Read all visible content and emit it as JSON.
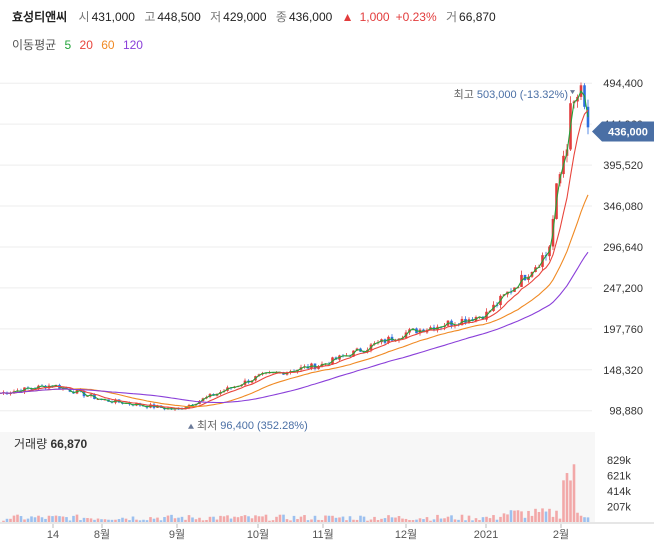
{
  "header": {
    "name": "효성티앤씨",
    "open_label": "시",
    "open": "431,000",
    "high_label": "고",
    "high": "448,500",
    "low_label": "저",
    "low": "429,000",
    "close_label": "종",
    "close": "436,000",
    "change_arrow": "▲",
    "change": "1,000",
    "change_pct": "+0.23%",
    "volume_label": "거",
    "volume": "66,870"
  },
  "moving_average": {
    "label": "이동평균",
    "periods": [
      {
        "value": "5",
        "color": "#22a33a"
      },
      {
        "value": "20",
        "color": "#e8453c"
      },
      {
        "value": "60",
        "color": "#f08a24"
      },
      {
        "value": "120",
        "color": "#8a3fd9"
      }
    ]
  },
  "colors": {
    "up": "#e23c3c",
    "down": "#2f6fe0",
    "grid": "#eeeeee",
    "price_tag": "#4a6fa5",
    "volume_up": "#f2a8a8",
    "volume_down": "#9cc0ef"
  },
  "chart_data": {
    "type": "candlestick",
    "y_axis": {
      "ticks": [
        98880,
        148320,
        197760,
        247200,
        296640,
        346080,
        395520,
        444960,
        494400
      ],
      "tick_labels": [
        "98,880",
        "148,320",
        "197,760",
        "247,200",
        "296,640",
        "346,080",
        "395,520",
        "444,960",
        "494,400"
      ],
      "range": [
        78000,
        520000
      ]
    },
    "x_axis": {
      "labels": [
        "14",
        "8월",
        "9월",
        "10월",
        "11월",
        "12월",
        "2021",
        "2월"
      ]
    },
    "current_price": {
      "value": 436000,
      "label": "436,000"
    },
    "high_marker": {
      "prefix": "최고",
      "value": 503000,
      "text": "503,000 (-13.32%)"
    },
    "low_marker": {
      "prefix": "최저",
      "value": 96400,
      "text": "96,400 (352.28%)"
    },
    "series": [
      {
        "name": "5",
        "color": "#22a33a"
      },
      {
        "name": "20",
        "color": "#e8453c"
      },
      {
        "name": "60",
        "color": "#f08a24"
      },
      {
        "name": "120",
        "color": "#8a3fd9"
      }
    ],
    "price_anchors": [
      {
        "month": "start",
        "close": 120000
      },
      {
        "month": "14",
        "close": 130000
      },
      {
        "month": "8월",
        "close": 112000
      },
      {
        "month": "9월",
        "close": 100000
      },
      {
        "month": "10월",
        "close": 140000
      },
      {
        "month": "11월",
        "close": 155000
      },
      {
        "month": "12월",
        "close": 193000
      },
      {
        "month": "2021",
        "close": 215000
      },
      {
        "month": "late Jan",
        "close": 290000
      },
      {
        "month": "2월",
        "close": 430000
      },
      {
        "month": "peak",
        "close": 480000
      },
      {
        "month": "end",
        "close": 436000
      }
    ],
    "volume": {
      "label": "거래량",
      "value": "66,870",
      "ticks": [
        207000,
        414000,
        621000,
        829000
      ],
      "tick_labels": [
        "207k",
        "414k",
        "621k",
        "829k"
      ],
      "max_bar": 829000
    }
  }
}
